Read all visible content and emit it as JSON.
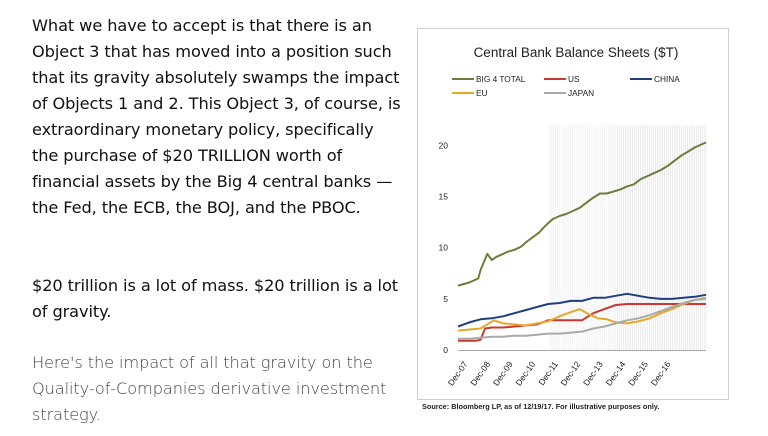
{
  "article": {
    "paragraph1": "What we have to accept is that there is an Object 3 that has moved into a position such that its gravity absolutely swamps the impact of Objects 1 and 2. This Object 3, of course, is extraordinary monetary policy, specifically the purchase of $20 TRILLION worth of financial assets by the Big 4 central banks — the Fed, the ECB, the BOJ, and the PBOC.",
    "paragraph2": "$20 trillion is a lot of mass. $20 trillion is a lot of gravity.",
    "paragraph3": "Here's the impact of all that gravity on the Quality-of-Companies derivative investment strategy."
  },
  "chart_data": {
    "type": "line",
    "title": "Central Bank Balance Sheets ($T)",
    "xlabel": "",
    "ylabel": "",
    "ylim": [
      0,
      22
    ],
    "yticks": [
      0,
      5,
      10,
      15,
      20
    ],
    "x_range": [
      2007.0,
      2018.0
    ],
    "x_ticks": [
      {
        "label": "Dec-07",
        "x": 2007.0
      },
      {
        "label": "Dec-08",
        "x": 2008.0
      },
      {
        "label": "Dec-09",
        "x": 2009.0
      },
      {
        "label": "Dec-10",
        "x": 2010.0
      },
      {
        "label": "Dec-11",
        "x": 2011.0
      },
      {
        "label": "Dec-12",
        "x": 2012.0
      },
      {
        "label": "Dec-13",
        "x": 2013.0
      },
      {
        "label": "Dec-14",
        "x": 2014.0
      },
      {
        "label": "Dec-15",
        "x": 2015.0
      },
      {
        "label": "Dec-16",
        "x": 2016.0
      }
    ],
    "legend": [
      "BIG 4 TOTAL",
      "US",
      "CHINA",
      "EU",
      "JAPAN"
    ],
    "series": [
      {
        "name": "BIG 4 TOTAL",
        "color": "#6a7f3a",
        "x": [
          2007.0,
          2007.5,
          2007.9,
          2008.0,
          2008.3,
          2008.5,
          2008.7,
          2008.9,
          2009.2,
          2009.5,
          2009.8,
          2010.0,
          2010.3,
          2010.6,
          2010.9,
          2011.2,
          2011.5,
          2011.8,
          2012.1,
          2012.4,
          2012.7,
          2013.0,
          2013.3,
          2013.6,
          2013.9,
          2014.2,
          2014.5,
          2014.8,
          2015.1,
          2015.4,
          2015.7,
          2016.0,
          2016.3,
          2016.6,
          2016.9,
          2017.2,
          2017.5,
          2017.8,
          2018.0
        ],
        "values": [
          6.3,
          6.6,
          7.0,
          7.8,
          9.4,
          8.8,
          9.1,
          9.3,
          9.6,
          9.8,
          10.1,
          10.5,
          11.0,
          11.5,
          12.2,
          12.8,
          13.1,
          13.3,
          13.6,
          13.9,
          14.4,
          14.9,
          15.3,
          15.3,
          15.5,
          15.7,
          16.0,
          16.2,
          16.7,
          17.0,
          17.3,
          17.6,
          18.0,
          18.5,
          19.0,
          19.4,
          19.8,
          20.1,
          20.3
        ]
      },
      {
        "name": "US",
        "color": "#c8382f",
        "x": [
          2007.0,
          2007.8,
          2008.0,
          2008.2,
          2008.5,
          2009.0,
          2009.5,
          2010.0,
          2010.5,
          2011.0,
          2011.5,
          2012.0,
          2012.5,
          2013.0,
          2013.5,
          2014.0,
          2014.5,
          2015.0,
          2015.5,
          2016.0,
          2016.5,
          2017.0,
          2017.5,
          2018.0
        ],
        "values": [
          0.9,
          0.9,
          1.0,
          2.1,
          2.2,
          2.2,
          2.3,
          2.4,
          2.5,
          2.9,
          2.9,
          2.9,
          2.9,
          3.6,
          4.0,
          4.4,
          4.5,
          4.5,
          4.5,
          4.5,
          4.5,
          4.5,
          4.5,
          4.5
        ]
      },
      {
        "name": "CHINA",
        "color": "#1f3f80",
        "x": [
          2007.0,
          2007.5,
          2008.0,
          2008.5,
          2009.0,
          2009.5,
          2010.0,
          2010.5,
          2011.0,
          2011.5,
          2012.0,
          2012.5,
          2013.0,
          2013.5,
          2014.0,
          2014.5,
          2015.0,
          2015.5,
          2016.0,
          2016.5,
          2017.0,
          2017.5,
          2018.0
        ],
        "values": [
          2.3,
          2.7,
          3.0,
          3.1,
          3.3,
          3.6,
          3.9,
          4.2,
          4.5,
          4.6,
          4.8,
          4.8,
          5.1,
          5.1,
          5.3,
          5.5,
          5.3,
          5.1,
          5.0,
          5.0,
          5.1,
          5.2,
          5.4
        ]
      },
      {
        "name": "EU",
        "color": "#e8a72a",
        "x": [
          2007.0,
          2007.5,
          2008.0,
          2008.3,
          2008.6,
          2009.0,
          2009.5,
          2010.0,
          2010.5,
          2011.0,
          2011.5,
          2012.0,
          2012.4,
          2012.8,
          2013.2,
          2013.6,
          2014.0,
          2014.5,
          2015.0,
          2015.5,
          2016.0,
          2016.5,
          2017.0,
          2017.5,
          2018.0
        ],
        "values": [
          1.9,
          2.0,
          2.1,
          2.5,
          2.9,
          2.6,
          2.5,
          2.4,
          2.6,
          2.8,
          3.3,
          3.7,
          4.0,
          3.5,
          3.1,
          3.0,
          2.7,
          2.6,
          2.8,
          3.1,
          3.6,
          4.0,
          4.5,
          4.9,
          5.1
        ]
      },
      {
        "name": "JAPAN",
        "color": "#a9a9a9",
        "x": [
          2007.0,
          2007.5,
          2008.0,
          2008.5,
          2009.0,
          2009.5,
          2010.0,
          2010.5,
          2011.0,
          2011.5,
          2012.0,
          2012.5,
          2013.0,
          2013.5,
          2014.0,
          2014.5,
          2015.0,
          2015.5,
          2016.0,
          2016.5,
          2017.0,
          2017.5,
          2018.0
        ],
        "values": [
          1.1,
          1.1,
          1.2,
          1.3,
          1.3,
          1.4,
          1.4,
          1.5,
          1.6,
          1.6,
          1.7,
          1.8,
          2.1,
          2.3,
          2.6,
          2.9,
          3.1,
          3.4,
          3.8,
          4.2,
          4.6,
          4.9,
          5.0
        ]
      }
    ],
    "source": "Source: Bloomberg LP, as of 12/19/17. For illustrative purposes only."
  }
}
